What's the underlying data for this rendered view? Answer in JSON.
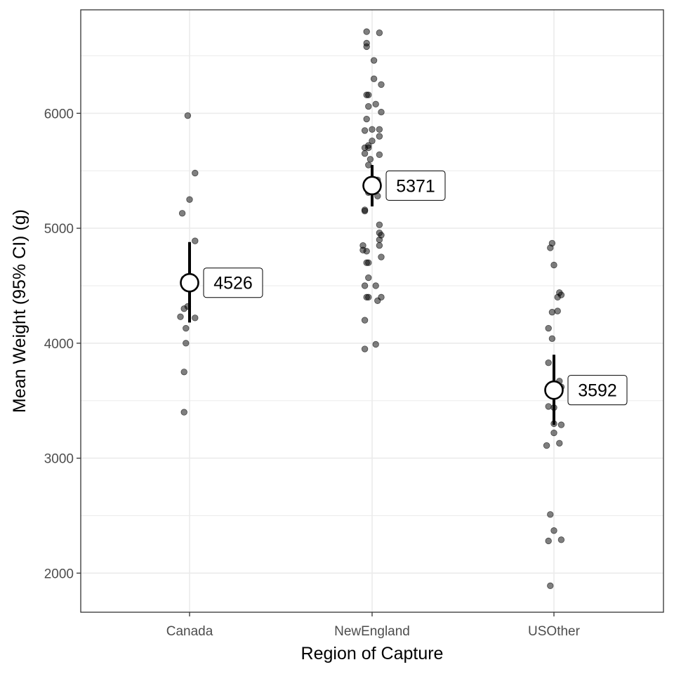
{
  "chart_data": {
    "type": "scatter",
    "xlabel": "Region of Capture",
    "ylabel": "Mean Weight (95% CI) (g)",
    "categories": [
      "Canada",
      "NewEngland",
      "USOther"
    ],
    "ylim": [
      1660,
      6900
    ],
    "yticks": [
      2000,
      3000,
      4000,
      5000,
      6000
    ],
    "grid": true,
    "summary": [
      {
        "category": "Canada",
        "mean": 4526,
        "ci_low": 4180,
        "ci_high": 4880,
        "label": "4526"
      },
      {
        "category": "NewEngland",
        "mean": 5371,
        "ci_low": 5190,
        "ci_high": 5550,
        "label": "5371"
      },
      {
        "category": "USOther",
        "mean": 3592,
        "ci_low": 3290,
        "ci_high": 3900,
        "label": "3592"
      }
    ],
    "points": [
      {
        "category": "Canada",
        "jitter": -0.01,
        "y": 5980
      },
      {
        "category": "Canada",
        "jitter": 0.03,
        "y": 5480
      },
      {
        "category": "Canada",
        "jitter": 0.0,
        "y": 5250
      },
      {
        "category": "Canada",
        "jitter": -0.04,
        "y": 5130
      },
      {
        "category": "Canada",
        "jitter": 0.03,
        "y": 4890
      },
      {
        "category": "Canada",
        "jitter": -0.03,
        "y": 4560
      },
      {
        "category": "Canada",
        "jitter": -0.02,
        "y": 4500
      },
      {
        "category": "Canada",
        "jitter": -0.03,
        "y": 4300
      },
      {
        "category": "Canada",
        "jitter": -0.01,
        "y": 4320
      },
      {
        "category": "Canada",
        "jitter": -0.05,
        "y": 4230
      },
      {
        "category": "Canada",
        "jitter": 0.03,
        "y": 4220
      },
      {
        "category": "Canada",
        "jitter": -0.02,
        "y": 4130
      },
      {
        "category": "Canada",
        "jitter": -0.02,
        "y": 4000
      },
      {
        "category": "Canada",
        "jitter": -0.03,
        "y": 3750
      },
      {
        "category": "Canada",
        "jitter": -0.03,
        "y": 3400
      },
      {
        "category": "NewEngland",
        "jitter": -0.03,
        "y": 6710
      },
      {
        "category": "NewEngland",
        "jitter": 0.04,
        "y": 6700
      },
      {
        "category": "NewEngland",
        "jitter": -0.03,
        "y": 6610
      },
      {
        "category": "NewEngland",
        "jitter": -0.03,
        "y": 6580
      },
      {
        "category": "NewEngland",
        "jitter": 0.01,
        "y": 6460
      },
      {
        "category": "NewEngland",
        "jitter": 0.01,
        "y": 6300
      },
      {
        "category": "NewEngland",
        "jitter": 0.05,
        "y": 6250
      },
      {
        "category": "NewEngland",
        "jitter": -0.03,
        "y": 6160
      },
      {
        "category": "NewEngland",
        "jitter": -0.02,
        "y": 6160
      },
      {
        "category": "NewEngland",
        "jitter": 0.02,
        "y": 6080
      },
      {
        "category": "NewEngland",
        "jitter": -0.02,
        "y": 6060
      },
      {
        "category": "NewEngland",
        "jitter": 0.05,
        "y": 6010
      },
      {
        "category": "NewEngland",
        "jitter": -0.03,
        "y": 5950
      },
      {
        "category": "NewEngland",
        "jitter": -0.04,
        "y": 5850
      },
      {
        "category": "NewEngland",
        "jitter": 0.0,
        "y": 5860
      },
      {
        "category": "NewEngland",
        "jitter": 0.04,
        "y": 5860
      },
      {
        "category": "NewEngland",
        "jitter": 0.04,
        "y": 5800
      },
      {
        "category": "NewEngland",
        "jitter": 0.0,
        "y": 5760
      },
      {
        "category": "NewEngland",
        "jitter": -0.04,
        "y": 5700
      },
      {
        "category": "NewEngland",
        "jitter": -0.02,
        "y": 5700
      },
      {
        "category": "NewEngland",
        "jitter": -0.02,
        "y": 5720
      },
      {
        "category": "NewEngland",
        "jitter": 0.04,
        "y": 5640
      },
      {
        "category": "NewEngland",
        "jitter": -0.04,
        "y": 5650
      },
      {
        "category": "NewEngland",
        "jitter": -0.01,
        "y": 5600
      },
      {
        "category": "NewEngland",
        "jitter": -0.02,
        "y": 5550
      },
      {
        "category": "NewEngland",
        "jitter": 0.03,
        "y": 5420
      },
      {
        "category": "NewEngland",
        "jitter": 0.01,
        "y": 5380
      },
      {
        "category": "NewEngland",
        "jitter": -0.02,
        "y": 5310
      },
      {
        "category": "NewEngland",
        "jitter": 0.03,
        "y": 5280
      },
      {
        "category": "NewEngland",
        "jitter": -0.04,
        "y": 5160
      },
      {
        "category": "NewEngland",
        "jitter": -0.04,
        "y": 5150
      },
      {
        "category": "NewEngland",
        "jitter": 0.04,
        "y": 5030
      },
      {
        "category": "NewEngland",
        "jitter": 0.04,
        "y": 4960
      },
      {
        "category": "NewEngland",
        "jitter": 0.05,
        "y": 4940
      },
      {
        "category": "NewEngland",
        "jitter": 0.04,
        "y": 4900
      },
      {
        "category": "NewEngland",
        "jitter": -0.05,
        "y": 4850
      },
      {
        "category": "NewEngland",
        "jitter": 0.04,
        "y": 4850
      },
      {
        "category": "NewEngland",
        "jitter": -0.05,
        "y": 4810
      },
      {
        "category": "NewEngland",
        "jitter": -0.03,
        "y": 4800
      },
      {
        "category": "NewEngland",
        "jitter": 0.05,
        "y": 4750
      },
      {
        "category": "NewEngland",
        "jitter": -0.02,
        "y": 4700
      },
      {
        "category": "NewEngland",
        "jitter": -0.03,
        "y": 4700
      },
      {
        "category": "NewEngland",
        "jitter": -0.02,
        "y": 4570
      },
      {
        "category": "NewEngland",
        "jitter": -0.04,
        "y": 4500
      },
      {
        "category": "NewEngland",
        "jitter": 0.02,
        "y": 4500
      },
      {
        "category": "NewEngland",
        "jitter": -0.03,
        "y": 4400
      },
      {
        "category": "NewEngland",
        "jitter": -0.02,
        "y": 4400
      },
      {
        "category": "NewEngland",
        "jitter": 0.05,
        "y": 4400
      },
      {
        "category": "NewEngland",
        "jitter": 0.03,
        "y": 4370
      },
      {
        "category": "NewEngland",
        "jitter": -0.04,
        "y": 4200
      },
      {
        "category": "NewEngland",
        "jitter": 0.02,
        "y": 3990
      },
      {
        "category": "NewEngland",
        "jitter": -0.04,
        "y": 3950
      },
      {
        "category": "USOther",
        "jitter": -0.01,
        "y": 4870
      },
      {
        "category": "USOther",
        "jitter": -0.02,
        "y": 4830
      },
      {
        "category": "USOther",
        "jitter": 0.0,
        "y": 4680
      },
      {
        "category": "USOther",
        "jitter": 0.03,
        "y": 4440
      },
      {
        "category": "USOther",
        "jitter": 0.04,
        "y": 4420
      },
      {
        "category": "USOther",
        "jitter": 0.02,
        "y": 4400
      },
      {
        "category": "USOther",
        "jitter": 0.02,
        "y": 4280
      },
      {
        "category": "USOther",
        "jitter": -0.01,
        "y": 4270
      },
      {
        "category": "USOther",
        "jitter": -0.03,
        "y": 4130
      },
      {
        "category": "USOther",
        "jitter": -0.01,
        "y": 4040
      },
      {
        "category": "USOther",
        "jitter": -0.03,
        "y": 3830
      },
      {
        "category": "USOther",
        "jitter": 0.03,
        "y": 3670
      },
      {
        "category": "USOther",
        "jitter": 0.0,
        "y": 3630
      },
      {
        "category": "USOther",
        "jitter": 0.04,
        "y": 3620
      },
      {
        "category": "USOther",
        "jitter": -0.03,
        "y": 3450
      },
      {
        "category": "USOther",
        "jitter": 0.0,
        "y": 3440
      },
      {
        "category": "USOther",
        "jitter": 0.0,
        "y": 3300
      },
      {
        "category": "USOther",
        "jitter": 0.04,
        "y": 3290
      },
      {
        "category": "USOther",
        "jitter": 0.0,
        "y": 3220
      },
      {
        "category": "USOther",
        "jitter": 0.03,
        "y": 3130
      },
      {
        "category": "USOther",
        "jitter": -0.04,
        "y": 3110
      },
      {
        "category": "USOther",
        "jitter": -0.02,
        "y": 2510
      },
      {
        "category": "USOther",
        "jitter": 0.0,
        "y": 2370
      },
      {
        "category": "USOther",
        "jitter": 0.04,
        "y": 2290
      },
      {
        "category": "USOther",
        "jitter": -0.03,
        "y": 2280
      },
      {
        "category": "USOther",
        "jitter": -0.02,
        "y": 1890
      }
    ],
    "colors": {
      "points": "#000000",
      "point_opacity": 0.5,
      "mean_fill": "#ffffff",
      "mean_stroke": "#000000",
      "ci": "#000000",
      "grid": "#ebebeb",
      "panel_border": "#333333"
    }
  }
}
